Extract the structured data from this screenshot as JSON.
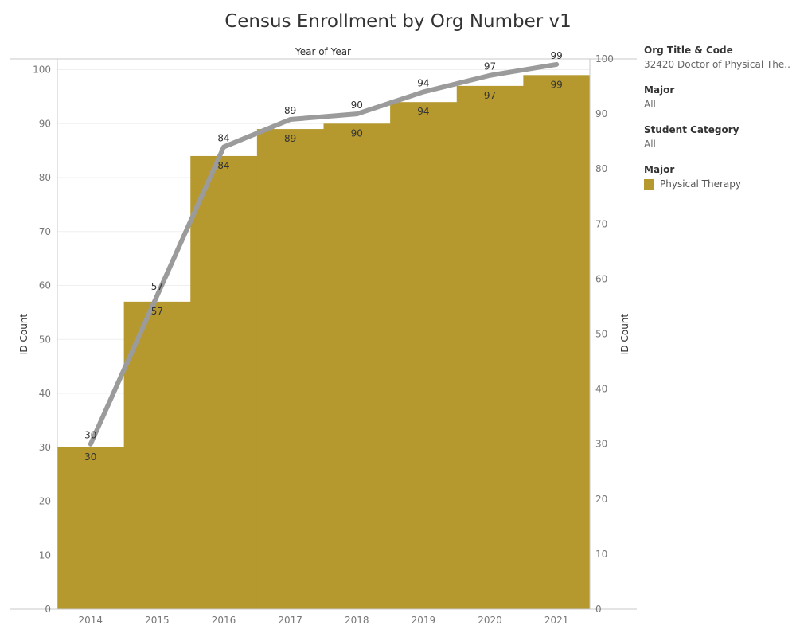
{
  "title": "Census Enrollment by Org Number v1",
  "filters": {
    "org": {
      "title": "Org Title & Code",
      "value": "32420 Doctor of Physical The.."
    },
    "major": {
      "title": "Major",
      "value": "All"
    },
    "student_category": {
      "title": "Student Category",
      "value": "All"
    }
  },
  "legend": {
    "title": "Major",
    "items": [
      {
        "label": "Physical Therapy",
        "color": "#B5992F"
      }
    ]
  },
  "chart_data": {
    "type": "bar",
    "x_header": "Year of Year",
    "categories": [
      "2014",
      "2015",
      "2016",
      "2017",
      "2018",
      "2019",
      "2020",
      "2021"
    ],
    "series": [
      {
        "type": "bar",
        "values": [
          30,
          57,
          84,
          89,
          90,
          94,
          97,
          99
        ],
        "color": "#B5992F"
      },
      {
        "type": "line",
        "values": [
          30,
          57,
          84,
          89,
          90,
          94,
          97,
          99
        ],
        "color": "#9B9B9B"
      }
    ],
    "ylabel_left": "ID Count",
    "ylabel_right": "ID Count",
    "ylim_left": [
      0,
      102
    ],
    "ylim_right": [
      0,
      100
    ],
    "yticks_left": [
      0,
      10,
      20,
      30,
      40,
      50,
      60,
      70,
      80,
      90,
      100
    ],
    "yticks_right": [
      0,
      10,
      20,
      30,
      40,
      50,
      60,
      70,
      80,
      90,
      100
    ],
    "gridlines": true
  }
}
